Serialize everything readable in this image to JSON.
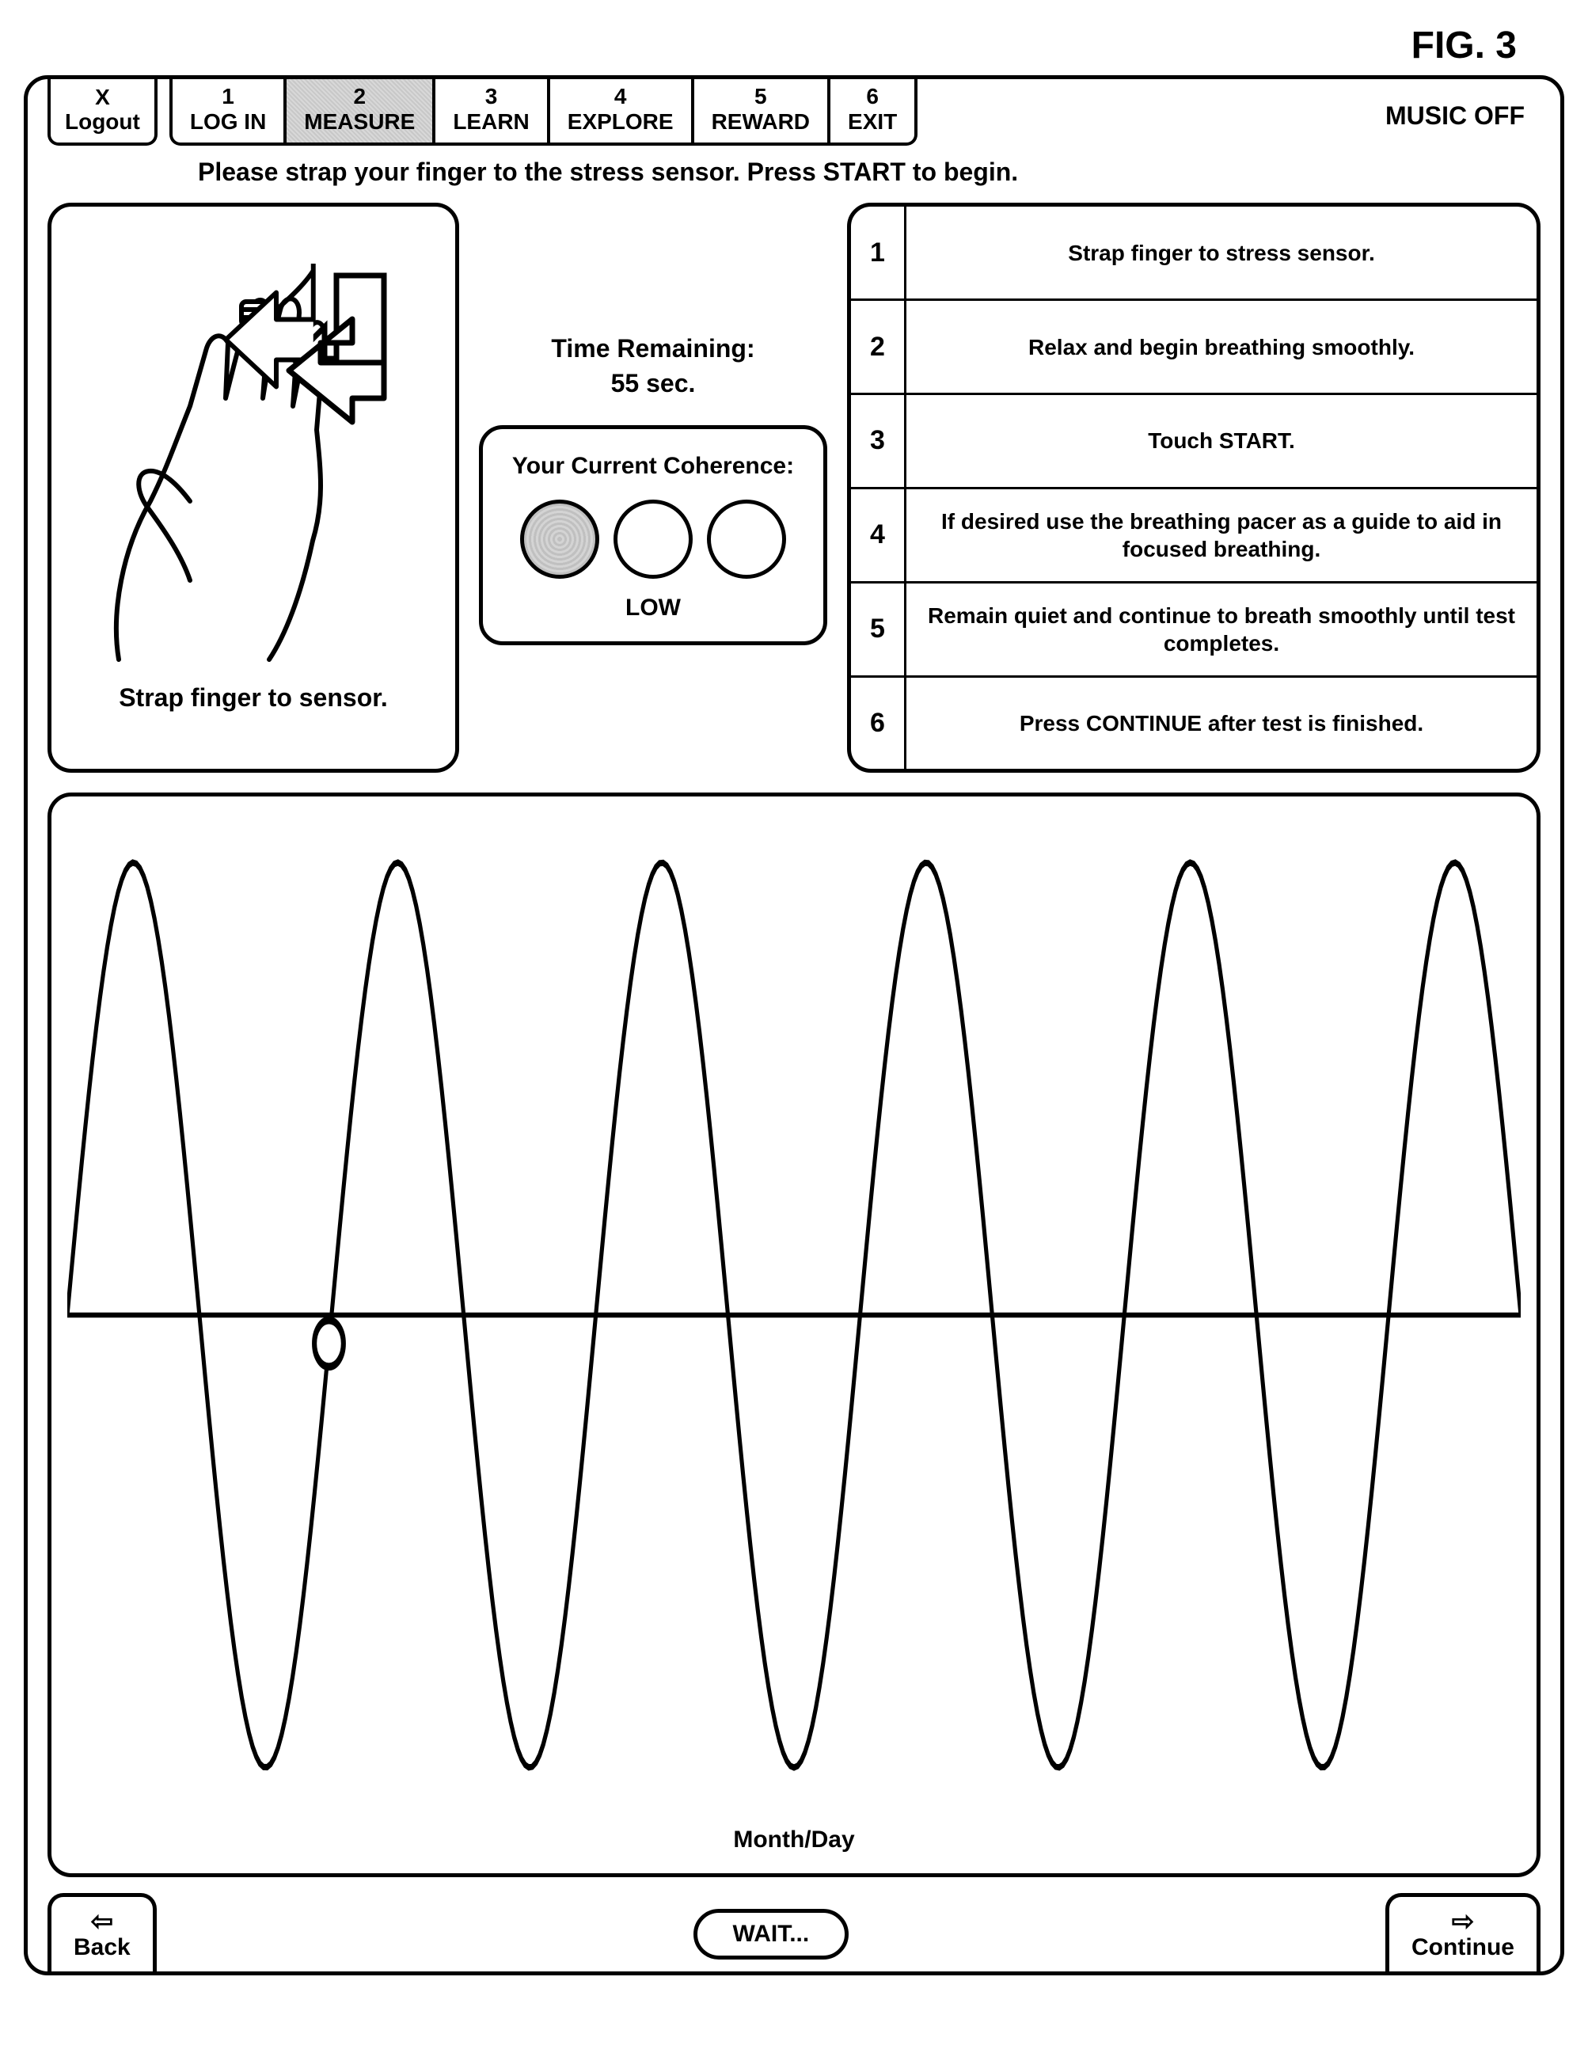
{
  "figure_label": "FIG. 3",
  "topbar": {
    "logout": {
      "x_label": "X",
      "text": "Logout"
    },
    "tabs": [
      {
        "num": "1",
        "label": "LOG IN",
        "active": false
      },
      {
        "num": "2",
        "label": "MEASURE",
        "active": true
      },
      {
        "num": "3",
        "label": "LEARN",
        "active": false
      },
      {
        "num": "4",
        "label": "EXPLORE",
        "active": false
      },
      {
        "num": "5",
        "label": "REWARD",
        "active": false
      },
      {
        "num": "6",
        "label": "EXIT",
        "active": false
      }
    ],
    "music_label": "MUSIC OFF"
  },
  "instruction": "Please strap your finger to the stress sensor.  Press START to begin.",
  "finger_panel": {
    "caption": "Strap finger to sensor."
  },
  "time_remaining": {
    "label": "Time Remaining:",
    "value": "55 sec."
  },
  "coherence": {
    "title": "Your Current Coherence:",
    "circles": [
      {
        "filled": true
      },
      {
        "filled": false
      },
      {
        "filled": false
      }
    ],
    "level": "LOW"
  },
  "steps": [
    {
      "num": "1",
      "text": "Strap finger to stress sensor."
    },
    {
      "num": "2",
      "text": "Relax and begin breathing smoothly."
    },
    {
      "num": "3",
      "text": "Touch START."
    },
    {
      "num": "4",
      "text": "If desired use the breathing pacer as a guide to aid in focused breathing."
    },
    {
      "num": "5",
      "text": "Remain quiet and continue to breath smoothly until test completes."
    },
    {
      "num": "6",
      "text": "Press CONTINUE after test is finished."
    }
  ],
  "wave": {
    "xlabel": "Month/Day",
    "type": "sine-pacer",
    "midline_y": 0.5,
    "amplitude": 0.45,
    "cycles": 5.5,
    "marker_phase": 0.18,
    "stroke_color": "#000000",
    "stroke_width": 5,
    "marker_radius": 18,
    "marker_fill": "#ffffff"
  },
  "bottom": {
    "back": {
      "arrow": "⇦",
      "label": "Back"
    },
    "wait": "WAIT...",
    "continue": {
      "arrow": "⇨",
      "label": "Continue"
    }
  },
  "colors": {
    "frame_border": "#000000",
    "background": "#ffffff",
    "tab_active_bg": "#d0d0d0",
    "coherence_filled": "#c0c0c0"
  },
  "typography": {
    "base_font": "Arial",
    "label_weight": "bold"
  }
}
